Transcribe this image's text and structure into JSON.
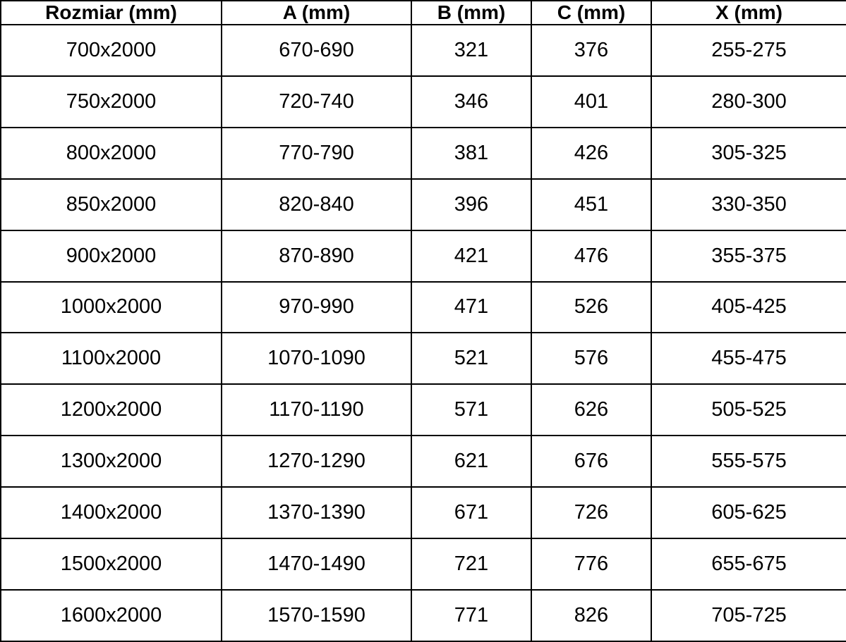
{
  "colors": {
    "background": "#ffffff",
    "border": "#000000",
    "text": "#000000"
  },
  "table": {
    "headers": [
      "Rozmiar (mm)",
      "A (mm)",
      "B (mm)",
      "C (mm)",
      "X (mm)"
    ],
    "rows": [
      [
        "700x2000",
        "670-690",
        "321",
        "376",
        "255-275"
      ],
      [
        "750x2000",
        "720-740",
        "346",
        "401",
        "280-300"
      ],
      [
        "800x2000",
        "770-790",
        "381",
        "426",
        "305-325"
      ],
      [
        "850x2000",
        "820-840",
        "396",
        "451",
        "330-350"
      ],
      [
        "900x2000",
        "870-890",
        "421",
        "476",
        "355-375"
      ],
      [
        "1000x2000",
        "970-990",
        "471",
        "526",
        "405-425"
      ],
      [
        "1100x2000",
        "1070-1090",
        "521",
        "576",
        "455-475"
      ],
      [
        "1200x2000",
        "1170-1190",
        "571",
        "626",
        "505-525"
      ],
      [
        "1300x2000",
        "1270-1290",
        "621",
        "676",
        "555-575"
      ],
      [
        "1400x2000",
        "1370-1390",
        "671",
        "726",
        "605-625"
      ],
      [
        "1500x2000",
        "1470-1490",
        "721",
        "776",
        "655-675"
      ],
      [
        "1600x2000",
        "1570-1590",
        "771",
        "826",
        "705-725"
      ]
    ]
  },
  "chart_data": {
    "type": "table",
    "title": "",
    "columns": [
      "Rozmiar (mm)",
      "A (mm)",
      "B (mm)",
      "C (mm)",
      "X (mm)"
    ],
    "rows": [
      [
        "700x2000",
        "670-690",
        321,
        376,
        "255-275"
      ],
      [
        "750x2000",
        "720-740",
        346,
        401,
        "280-300"
      ],
      [
        "800x2000",
        "770-790",
        381,
        426,
        "305-325"
      ],
      [
        "850x2000",
        "820-840",
        396,
        451,
        "330-350"
      ],
      [
        "900x2000",
        "870-890",
        421,
        476,
        "355-375"
      ],
      [
        "1000x2000",
        "970-990",
        471,
        526,
        "405-425"
      ],
      [
        "1100x2000",
        "1070-1090",
        521,
        576,
        "455-475"
      ],
      [
        "1200x2000",
        "1170-1190",
        571,
        626,
        "505-525"
      ],
      [
        "1300x2000",
        "1270-1290",
        621,
        676,
        "555-575"
      ],
      [
        "1400x2000",
        "1370-1390",
        671,
        726,
        "605-625"
      ],
      [
        "1500x2000",
        "1470-1490",
        721,
        776,
        "655-675"
      ],
      [
        "1600x2000",
        "1570-1590",
        771,
        826,
        "705-725"
      ]
    ],
    "layout_hints": {
      "grid": true,
      "header_bold": true,
      "all_cells_centered": true
    }
  }
}
